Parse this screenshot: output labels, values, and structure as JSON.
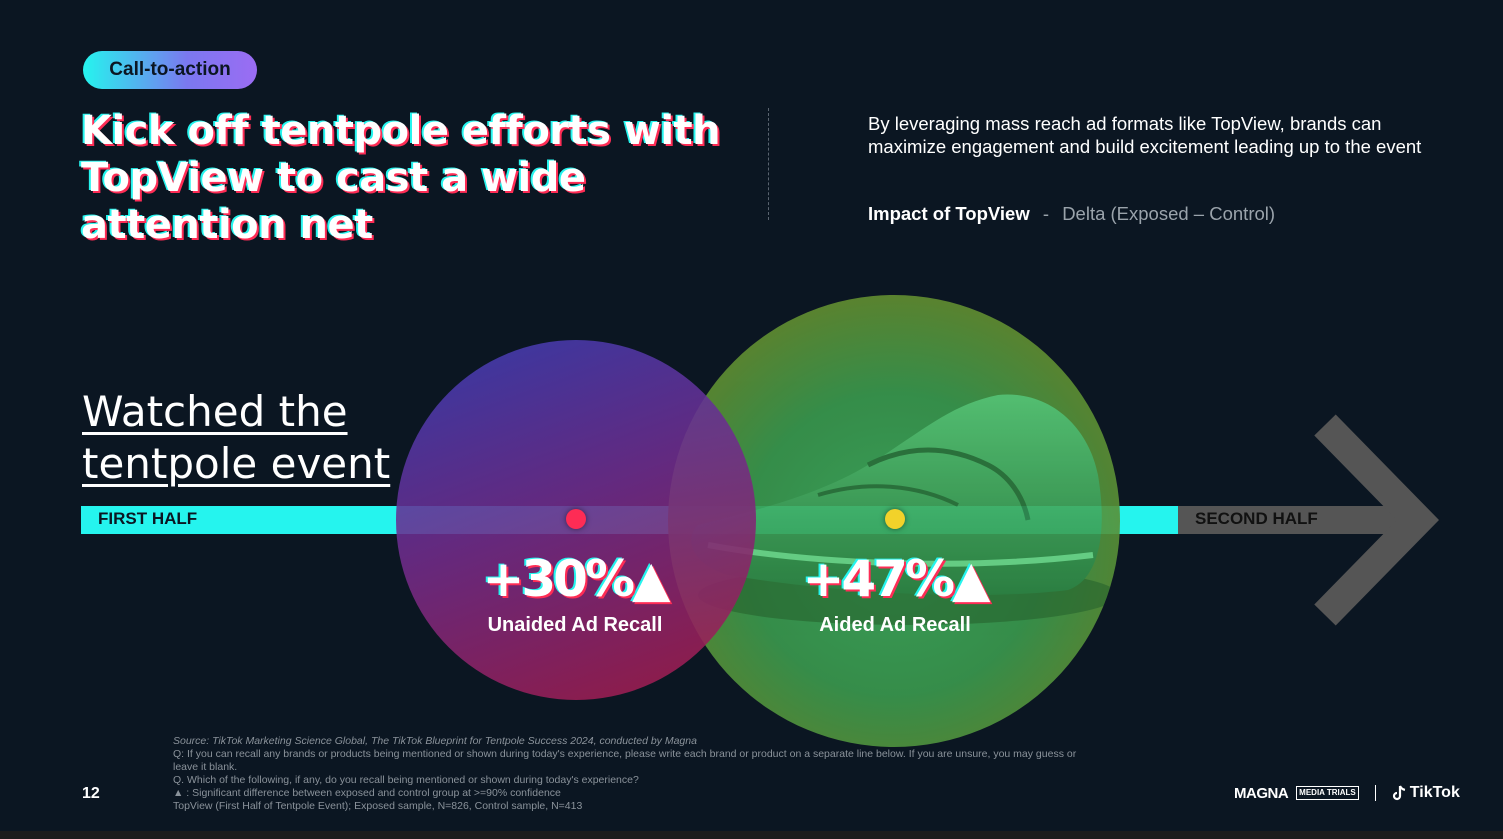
{
  "badge": "Call-to-action",
  "headline": "Kick off tentpole efforts with TopView to cast a wide attention net",
  "intro": "By leveraging mass reach ad formats like TopView, brands can maximize engagement and build excitement leading up to the event",
  "impact": {
    "label": "Impact of TopView",
    "separator": "-",
    "detail": "Delta (Exposed – Control)"
  },
  "watched": "Watched the tentpole event",
  "timeline": {
    "first_half": "FIRST HALF",
    "second_half": "SECOND HALF"
  },
  "metrics": [
    {
      "value": "+30%▲",
      "label": "Unaided Ad Recall"
    },
    {
      "value": "+47%▲",
      "label": "Aided Ad Recall"
    }
  ],
  "source": {
    "line1": "Source: TikTok Marketing Science Global, The TikTok Blueprint for Tentpole Success 2024, conducted by Magna",
    "line2": "Q: If you can recall any brands or products being mentioned or shown during today's experience, please write each brand or product on a separate line below. If you are unsure, you may guess or leave it blank.",
    "line3": "Q. Which of the following, if any, do you recall being mentioned or shown during today's experience?",
    "line4": "▲ : Significant difference between exposed and control group at >=90% confidence",
    "line5": "TopView (First Half of Tentpole Event); Exposed sample, N=826, Control sample, N=413"
  },
  "page_number": "12",
  "logos": {
    "magna": "MAGNA",
    "media_trials": "MEDIA TRIALS",
    "tiktok": "TikTok"
  },
  "colors": {
    "background": "#0b1622",
    "cyan": "#25f4ee",
    "pink": "#fe2c55",
    "yellow": "#f2d22a",
    "gray_arrow": "#555555"
  }
}
